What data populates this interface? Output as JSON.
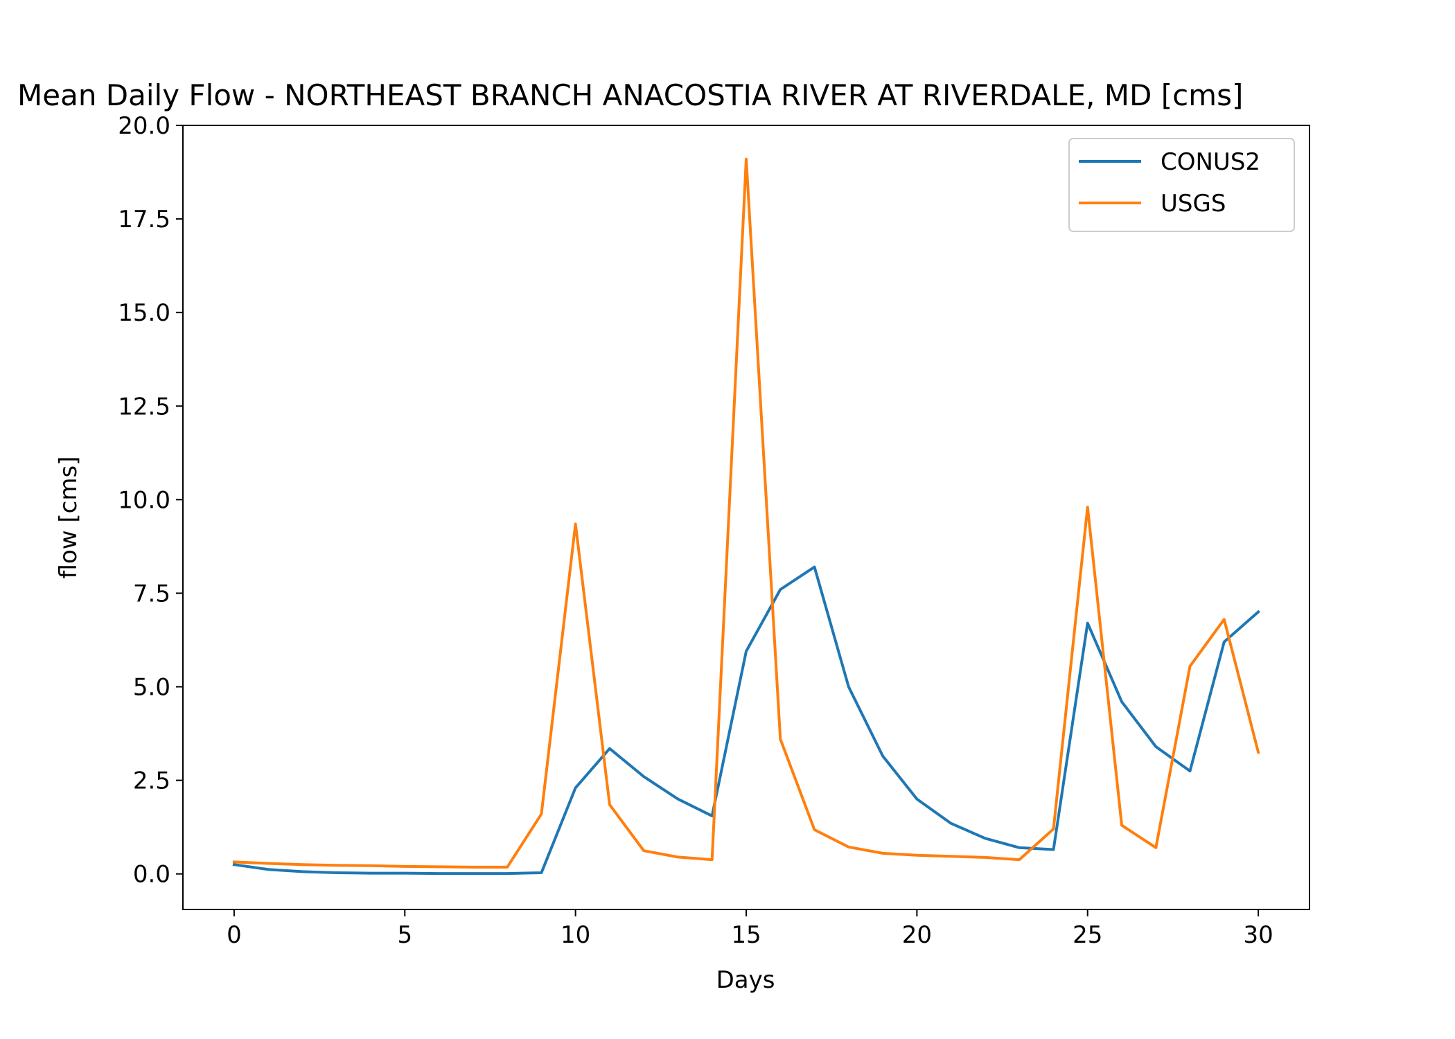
{
  "chart_data": {
    "type": "line",
    "title": "Mean Daily Flow - NORTHEAST BRANCH ANACOSTIA RIVER AT RIVERDALE, MD [cms]",
    "xlabel": "Days",
    "ylabel": "flow [cms]",
    "xlim": [
      -1.5,
      31.5
    ],
    "ylim": [
      -0.95,
      20.0
    ],
    "x_ticks": [
      0,
      5,
      10,
      15,
      20,
      25,
      30
    ],
    "y_ticks": [
      "0.0",
      "2.5",
      "5.0",
      "7.5",
      "10.0",
      "12.5",
      "15.0",
      "17.5",
      "20.0"
    ],
    "grid": false,
    "legend_position": "top-right",
    "x": [
      0,
      1,
      2,
      3,
      4,
      5,
      6,
      7,
      8,
      9,
      10,
      11,
      12,
      13,
      14,
      15,
      16,
      17,
      18,
      19,
      20,
      21,
      22,
      23,
      24,
      25,
      26,
      27,
      28,
      29,
      30
    ],
    "series": [
      {
        "name": "CONUS2",
        "color": "#1f77b4",
        "values": [
          0.25,
          0.12,
          0.06,
          0.03,
          0.02,
          0.02,
          0.01,
          0.01,
          0.01,
          0.03,
          2.3,
          3.35,
          2.6,
          2.0,
          1.55,
          5.95,
          7.6,
          8.2,
          5.0,
          3.15,
          2.0,
          1.35,
          0.95,
          0.7,
          0.65,
          6.7,
          4.6,
          3.4,
          2.75,
          6.2,
          7.0
        ]
      },
      {
        "name": "USGS",
        "color": "#ff7f0e",
        "values": [
          0.32,
          0.28,
          0.25,
          0.23,
          0.22,
          0.2,
          0.19,
          0.18,
          0.18,
          1.6,
          9.35,
          1.85,
          0.62,
          0.45,
          0.38,
          19.1,
          3.6,
          1.18,
          0.72,
          0.55,
          0.5,
          0.47,
          0.44,
          0.38,
          1.2,
          9.8,
          1.3,
          0.7,
          5.55,
          6.8,
          3.25
        ]
      }
    ]
  }
}
